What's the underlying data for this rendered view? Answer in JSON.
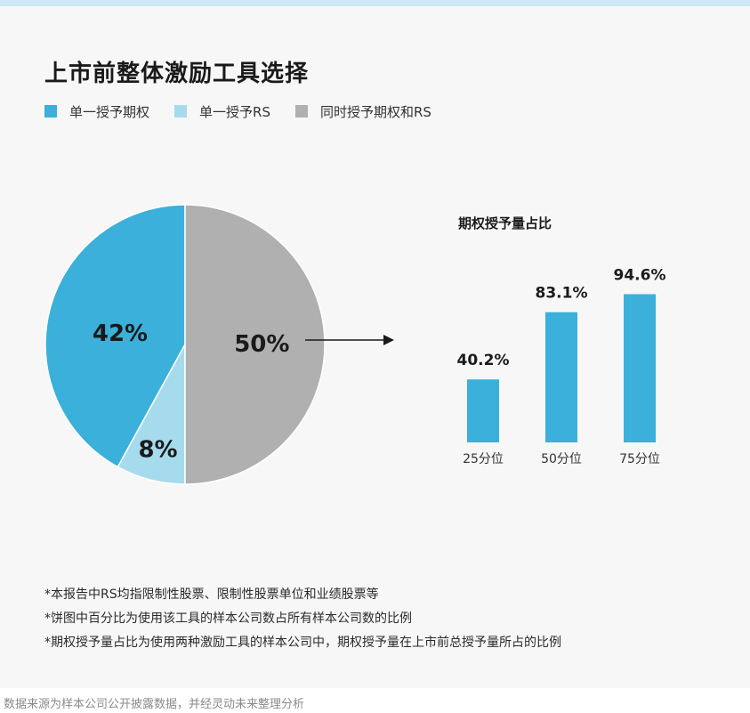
{
  "title": "上市前整体激励工具选择",
  "legend": [
    {
      "label": "单一授予期权",
      "color": "#3ab0db"
    },
    {
      "label": "单一授予RS",
      "color": "#a6dbee"
    },
    {
      "label": "同时授予期权和RS",
      "color": "#b0b0b0"
    }
  ],
  "chart_data": [
    {
      "type": "pie",
      "title": "上市前整体激励工具选择",
      "slices": [
        {
          "name": "单一授予期权",
          "value": 42,
          "label": "42%",
          "color": "#3ab0db"
        },
        {
          "name": "单一授予RS",
          "value": 8,
          "label": "8%",
          "color": "#a6dbee"
        },
        {
          "name": "同时授予期权和RS",
          "value": 50,
          "label": "50%",
          "color": "#b0b0b0"
        }
      ]
    },
    {
      "type": "bar",
      "title": "期权授予量占比",
      "categories": [
        "25分位",
        "50分位",
        "75分位"
      ],
      "values": [
        40.2,
        83.1,
        94.6
      ],
      "labels": [
        "40.2%",
        "83.1%",
        "94.6%"
      ],
      "color": "#3ab0db",
      "ylim": [
        0,
        100
      ]
    }
  ],
  "notes": [
    "*本报告中RS均指限制性股票、限制性股票单位和业绩股票等",
    "*饼图中百分比为使用该工具的样本公司数占所有样本公司数的比例",
    "*期权授予量占比为使用两种激励工具的样本公司中，期权授予量在上市前总授予量所占的比例"
  ],
  "footer": "数据来源为样本公司公开披露数据，并经灵动未来整理分析"
}
